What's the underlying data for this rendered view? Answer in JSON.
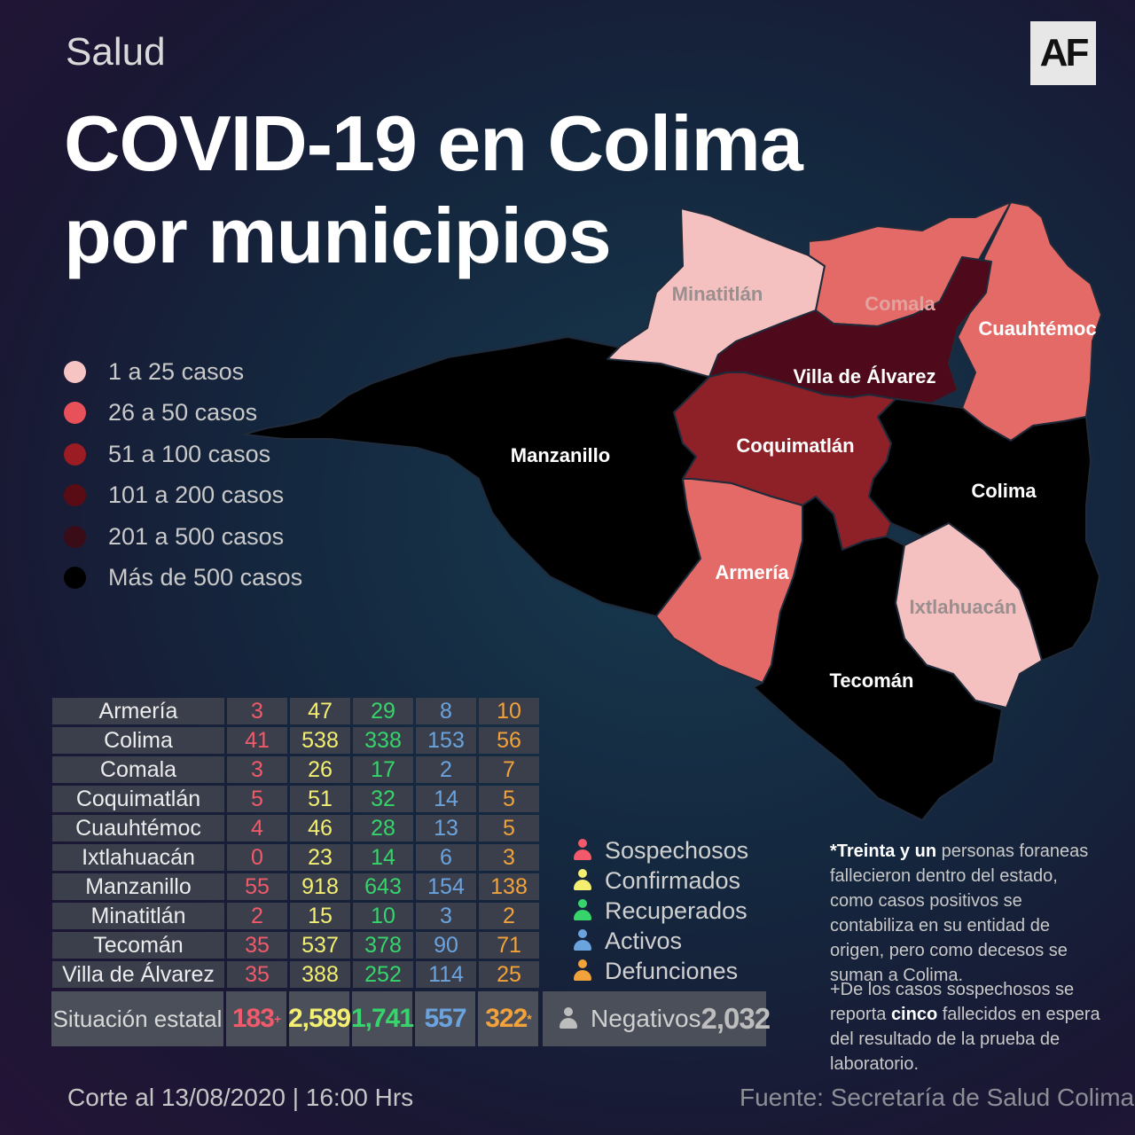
{
  "header": {
    "section": "Salud",
    "title_line1": "COVID-19 en Colima",
    "title_line2": "por municipios",
    "logo": "AF"
  },
  "legend": [
    {
      "label": "1 a 25 casos",
      "color": "#f6c4c3"
    },
    {
      "label": "26 a  50 casos",
      "color": "#e8505a"
    },
    {
      "label": "51 a  100 casos",
      "color": "#9b1c22"
    },
    {
      "label": "101 a  200 casos",
      "color": "#5a0c14"
    },
    {
      "label": "201  a  500 casos",
      "color": "#3a0c18"
    },
    {
      "label": "Más de 500 casos",
      "color": "#000000"
    }
  ],
  "map": {
    "labels": {
      "minatitlan": "Minatitlán",
      "comala": "Comala",
      "cuauhtemoc": "Cuauhtémoc",
      "villa": "Villa de Álvarez",
      "manzanillo": "Manzanillo",
      "coquimatlan": "Coquimatlán",
      "colima": "Colima",
      "armeria": "Armería",
      "ixtlahuacan": "Ixtlahuacán",
      "tecoman": "Tecomán"
    },
    "colors": {
      "light": "#f4c1c0",
      "salmon": "#e36a66",
      "red": "#8e2027",
      "darkred": "#4e0a1a",
      "black": "#000000"
    }
  },
  "table": {
    "rows": [
      {
        "name": "Armería",
        "s": "3",
        "c": "47",
        "r": "29",
        "a": "8",
        "d": "10"
      },
      {
        "name": "Colima",
        "s": "41",
        "c": "538",
        "r": "338",
        "a": "153",
        "d": "56"
      },
      {
        "name": "Comala",
        "s": "3",
        "c": "26",
        "r": "17",
        "a": "2",
        "d": "7"
      },
      {
        "name": "Coquimatlán",
        "s": "5",
        "c": "51",
        "r": "32",
        "a": "14",
        "d": "5"
      },
      {
        "name": "Cuauhtémoc",
        "s": "4",
        "c": "46",
        "r": "28",
        "a": "13",
        "d": "5"
      },
      {
        "name": "Ixtlahuacán",
        "s": "0",
        "c": "23",
        "r": "14",
        "a": "6",
        "d": "3"
      },
      {
        "name": "Manzanillo",
        "s": "55",
        "c": "918",
        "r": "643",
        "a": "154",
        "d": "138"
      },
      {
        "name": "Minatitlán",
        "s": "2",
        "c": "15",
        "r": "10",
        "a": "3",
        "d": "2"
      },
      {
        "name": "Tecomán",
        "s": "35",
        "c": "537",
        "r": "378",
        "a": "90",
        "d": "71"
      },
      {
        "name": "Villa de Álvarez",
        "s": "35",
        "c": "388",
        "r": "252",
        "a": "114",
        "d": "25"
      }
    ],
    "totals": {
      "label": "Situación estatal",
      "s": "183",
      "s_mark": "+",
      "c": "2,589",
      "r": "1,741",
      "a": "557",
      "d": "322",
      "d_mark": "*",
      "neg_label": "Negativos",
      "neg_value": "2,032"
    }
  },
  "key": [
    {
      "label": "Sospechosos",
      "color": "#f05a6a"
    },
    {
      "label": "Confirmados",
      "color": "#f4ee71"
    },
    {
      "label": "Recuperados",
      "color": "#36d46a"
    },
    {
      "label": "Activos",
      "color": "#6aa3de"
    },
    {
      "label": "Defunciones",
      "color": "#f2a23a"
    }
  ],
  "negativos_icon_color": "#bdbdbd",
  "notes": {
    "n1_bold": "*Treinta y un",
    "n1_text": " personas foraneas fallecieron dentro del estado, como casos positivos se contabiliza en su entidad de origen, pero como decesos se suman a Colima.",
    "n2_pre": "+De los casos sospechosos se reporta ",
    "n2_bold": "cinco",
    "n2_post": " fallecidos en espera del resultado de la prueba de laboratorio."
  },
  "footer": {
    "date": "Corte al 13/08/2020 | 16:00 Hrs",
    "source": "Fuente: Secretaría de Salud Colima"
  }
}
